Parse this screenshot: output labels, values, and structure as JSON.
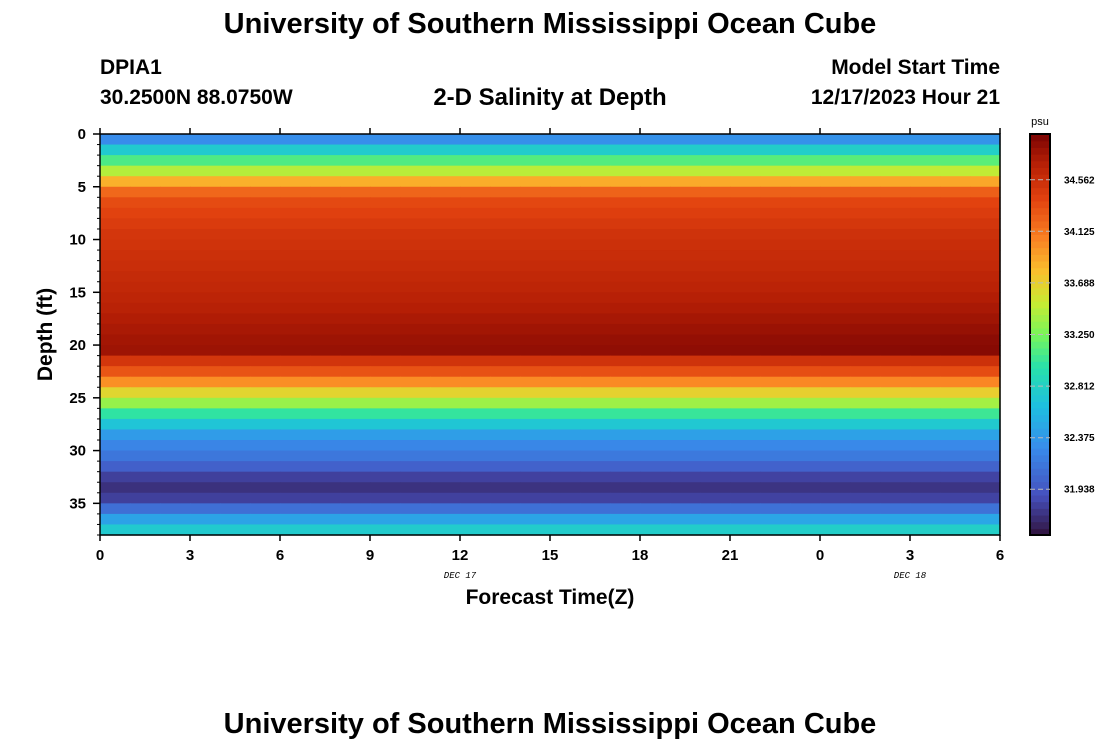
{
  "header": {
    "title": "University of Southern Mississippi Ocean Cube",
    "station": "DPIA1",
    "coordinates": "30.2500N  88.0750W",
    "subtitle": "2-D Salinity at Depth",
    "model_start_label": "Model Start Time",
    "model_start_value": "12/17/2023 Hour 21"
  },
  "footer": {
    "title": "University of Southern Mississippi Ocean Cube"
  },
  "chart_data": {
    "type": "heatmap",
    "title": "2-D Salinity at Depth",
    "xlabel": "Forecast Time(Z)",
    "ylabel": "Depth (ft)",
    "x_range_hours": [
      0,
      30
    ],
    "ylim": [
      0,
      38
    ],
    "y_inverted": true,
    "x_ticks": [
      {
        "hour": 0,
        "label": "0"
      },
      {
        "hour": 3,
        "label": "3"
      },
      {
        "hour": 6,
        "label": "6"
      },
      {
        "hour": 9,
        "label": "9"
      },
      {
        "hour": 12,
        "label": "12"
      },
      {
        "hour": 15,
        "label": "15"
      },
      {
        "hour": 18,
        "label": "18"
      },
      {
        "hour": 21,
        "label": "21"
      },
      {
        "hour": 24,
        "label": "0"
      },
      {
        "hour": 27,
        "label": "3"
      },
      {
        "hour": 30,
        "label": "6"
      }
    ],
    "date_labels": [
      {
        "hour": 12,
        "label": "DEC 17"
      },
      {
        "hour": 27,
        "label": "DEC 18"
      }
    ],
    "y_ticks": [
      0,
      5,
      10,
      15,
      20,
      25,
      30,
      35
    ],
    "colorbar": {
      "unit": "psu",
      "min": 31.55,
      "max": 34.95,
      "ticks": [
        31.938,
        32.375,
        32.812,
        33.25,
        33.688,
        34.125,
        34.562
      ],
      "tick_labels": [
        "31.938",
        "32.375",
        "32.812",
        "33.250",
        "33.688",
        "34.125",
        "34.562"
      ]
    },
    "layer_thickness_ft": 1.0,
    "depth_profile_start": [
      32.3,
      32.75,
      33.1,
      33.45,
      33.85,
      34.2,
      34.35,
      34.4,
      34.45,
      34.5,
      34.52,
      34.55,
      34.57,
      34.6,
      34.62,
      34.65,
      34.68,
      34.72,
      34.75,
      34.78,
      34.8,
      34.5,
      34.3,
      34.0,
      33.65,
      33.35,
      33.0,
      32.7,
      32.4,
      32.25,
      32.15,
      32.0,
      31.8,
      31.72,
      31.8,
      32.1,
      32.45,
      32.75
    ],
    "depth_profile_end": [
      32.35,
      32.8,
      33.15,
      33.5,
      33.9,
      34.25,
      34.4,
      34.45,
      34.5,
      34.55,
      34.58,
      34.6,
      34.62,
      34.65,
      34.68,
      34.72,
      34.76,
      34.8,
      34.84,
      34.88,
      34.9,
      34.55,
      34.35,
      34.05,
      33.7,
      33.4,
      33.05,
      32.75,
      32.45,
      32.28,
      32.18,
      32.02,
      31.82,
      31.74,
      31.82,
      32.12,
      32.48,
      32.8
    ]
  }
}
